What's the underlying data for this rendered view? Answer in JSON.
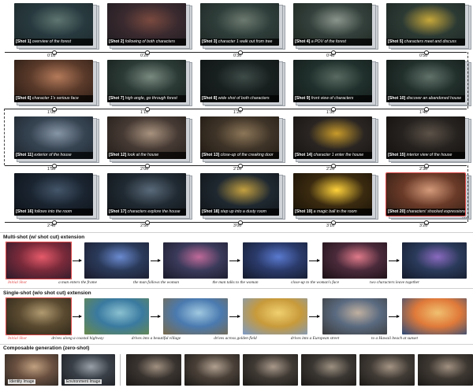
{
  "shots": [
    {
      "num": "[Shot 1]",
      "desc": "overview of the forest",
      "colors": [
        "#283a3f",
        "#5e7570",
        "#1b2628"
      ]
    },
    {
      "num": "[Shot 2]",
      "desc": "following of both characters",
      "colors": [
        "#3a2a2f",
        "#7a4a3f",
        "#1c1a1f"
      ]
    },
    {
      "num": "[Shot 3]",
      "desc": "character 1 walk out from tree",
      "colors": [
        "#2f3e3a",
        "#6c7a70",
        "#1d2523"
      ]
    },
    {
      "num": "[Shot 4]",
      "desc": "a POV of the forest",
      "colors": [
        "#33403b",
        "#8a958c",
        "#1e2520"
      ]
    },
    {
      "num": "[Shot 5]",
      "desc": "characters meet and discuss",
      "colors": [
        "#2c3a34",
        "#c6a73a",
        "#1b2320"
      ]
    },
    {
      "num": "[Shot 6]",
      "desc": "character 1's serious face",
      "colors": [
        "#5a3a2a",
        "#b47a5a",
        "#241812"
      ]
    },
    {
      "num": "[Shot 7]",
      "desc": "high angle, go through forest",
      "colors": [
        "#2c3b36",
        "#798a80",
        "#141c1a"
      ]
    },
    {
      "num": "[Shot 8]",
      "desc": "wide shot of both characters",
      "colors": [
        "#18201f",
        "#3e4c48",
        "#0e1212"
      ]
    },
    {
      "num": "[Shot 9]",
      "desc": "front view of characters",
      "colors": [
        "#20302c",
        "#596a62",
        "#121a18"
      ]
    },
    {
      "num": "[Shot 10]",
      "desc": "discover an abandoned house",
      "colors": [
        "#22302c",
        "#61726a",
        "#0f1513"
      ]
    },
    {
      "num": "[Shot 11]",
      "desc": "exterior of the house",
      "colors": [
        "#364452",
        "#8796a6",
        "#1c232b"
      ]
    },
    {
      "num": "[Shot 12]",
      "desc": "look at the house",
      "colors": [
        "#463a34",
        "#a8927e",
        "#201a16"
      ]
    },
    {
      "num": "[Shot 13]",
      "desc": "close-up of the creaking door",
      "colors": [
        "#3f3428",
        "#8c7658",
        "#1c1610"
      ]
    },
    {
      "num": "[Shot 14]",
      "desc": "character 1 enter the house",
      "colors": [
        "#2a2522",
        "#c89a2a",
        "#141210"
      ]
    },
    {
      "num": "[Shot 15]",
      "desc": "interior view of the house",
      "colors": [
        "#26221f",
        "#5c5248",
        "#100e0c"
      ]
    },
    {
      "num": "[Shot 16]",
      "desc": "follows into the room",
      "colors": [
        "#1a2430",
        "#44566a",
        "#0c1016"
      ]
    },
    {
      "num": "[Shot 17]",
      "desc": "characters explore the house",
      "colors": [
        "#202a32",
        "#5a6a7a",
        "#0e1216"
      ]
    },
    {
      "num": "[Shot 18]",
      "desc": "step up into a dusty room",
      "colors": [
        "#1f2830",
        "#c4a040",
        "#0e1216"
      ]
    },
    {
      "num": "[Shot 19]",
      "desc": "a magic ball in the room",
      "colors": [
        "#3a2a10",
        "#ffd23a",
        "#150f05"
      ]
    },
    {
      "num": "[Shot 20]",
      "desc": "characters' shocked expressions",
      "colors": [
        "#6a3a28",
        "#d49a7a",
        "#2a1a12"
      ]
    }
  ],
  "timeline_rows": [
    [
      "0'10\"",
      "0'20\"",
      "0'30\"",
      "0'40\"",
      "0'50\""
    ],
    [
      "1'00\"",
      "1'10\"",
      "1'20\"",
      "1'30\"",
      "1'40\""
    ],
    [
      "1'50\"",
      "2'00\"",
      "2'10\"",
      "2'20\"",
      "2'30\""
    ],
    [
      "2'40\"",
      "2'50\"",
      "3'00\"",
      "3'10\"",
      "3'20\""
    ]
  ],
  "ellipsis": "...",
  "sections": {
    "multi": {
      "title": "Multi-shot (w/ shot cut) extension",
      "initial": "Initial Shot",
      "captions": [
        "a man enters the frame",
        "the man follows the woman",
        "the man talks to the woman",
        "close-up to the woman's face",
        "two characters leave together"
      ],
      "colors": [
        [
          "#7a2a3a",
          "#e65a6a",
          "#2a1a2a"
        ],
        [
          "#2a3a5a",
          "#6a8ad0",
          "#1a1a2a"
        ],
        [
          "#3a3a5a",
          "#c06a9a",
          "#1a1a2a"
        ],
        [
          "#2a3a6a",
          "#5a7ad0",
          "#141a2a"
        ],
        [
          "#4a2a3a",
          "#e07a8a",
          "#1a1014"
        ],
        [
          "#2a3a5a",
          "#8a6ac0",
          "#141a2a"
        ]
      ]
    },
    "single": {
      "title": "Single-shot (w/o shot cut) extension",
      "initial": "Initial Shot",
      "captions": [
        "drives along a coastal highway",
        "drives into a beautiful village",
        "drives across golden field",
        "drives into a European street",
        "to a Hawaii beach at sunset"
      ],
      "colors": [
        [
          "#5a4a30",
          "#b09a70",
          "#2a2418"
        ],
        [
          "#3a7aa0",
          "#8ac0d0",
          "#6a8a4a"
        ],
        [
          "#4a7ab0",
          "#a0c8e0",
          "#7a6a4a"
        ],
        [
          "#c89a3a",
          "#f0d070",
          "#7a9ac8"
        ],
        [
          "#5a6a80",
          "#c0b0a0",
          "#3a3a3a"
        ],
        [
          "#e07a3a",
          "#f0c070",
          "#2a4a7a"
        ]
      ]
    },
    "comp": {
      "title": "Composable generation (zero-shot)",
      "identity_label": "Identity Image",
      "environment_label": "Environment Image",
      "colors": [
        [
          "#6a5040",
          "#c0a080",
          "#2a2420"
        ],
        [
          "#3a4048",
          "#9aa0a8",
          "#1a1c20"
        ],
        [
          "#3a3430",
          "#a09080",
          "#1a1816"
        ],
        [
          "#4a4038",
          "#b0a090",
          "#1a1816"
        ],
        [
          "#403a34",
          "#a8988a",
          "#1a1816"
        ],
        [
          "#3a3632",
          "#9c9080",
          "#1a1816"
        ],
        [
          "#423c36",
          "#a49484",
          "#1a1816"
        ],
        [
          "#3e3832",
          "#a09080",
          "#1a1816"
        ]
      ]
    }
  }
}
